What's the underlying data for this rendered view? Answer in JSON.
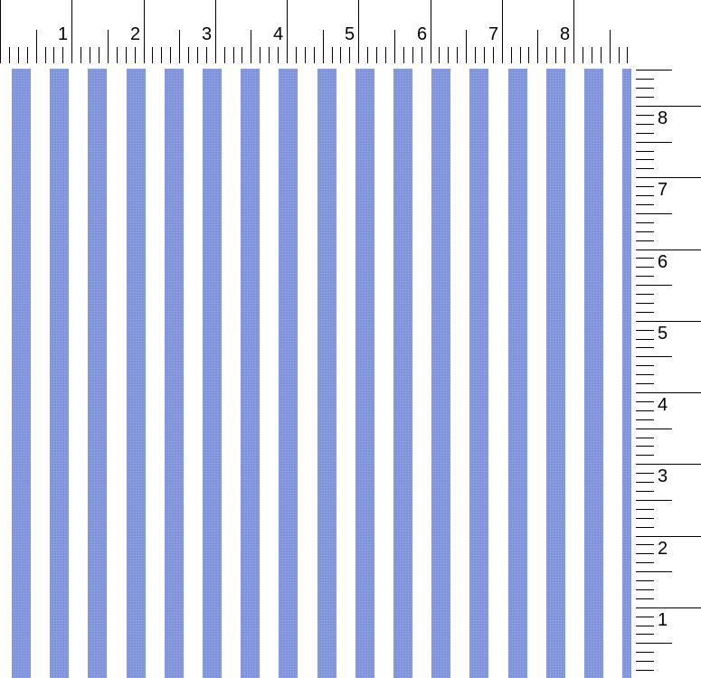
{
  "top_ruler": {
    "labels": [
      "1",
      "2",
      "3",
      "4",
      "5",
      "6",
      "7",
      "8"
    ]
  },
  "side_ruler": {
    "labels": [
      "8",
      "7",
      "6",
      "5",
      "4",
      "3",
      "2",
      "1"
    ]
  },
  "fabric": {
    "pattern": "vertical-stripes",
    "stripe_color": "#7f92da",
    "background_color": "#ffffff",
    "stripe_count": 17
  }
}
